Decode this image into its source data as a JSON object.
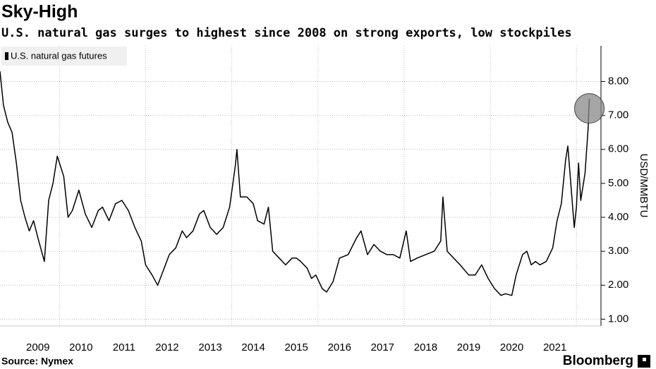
{
  "chart_data": {
    "type": "line",
    "title": "Sky-High",
    "subtitle": "U.S. natural gas surges to highest since 2008 on strong exports, low stockpiles",
    "y_axis_label": "USD/MMBTU",
    "source": "Source: Nymex",
    "brand": "Bloomberg",
    "legend": "top-left",
    "grid": true,
    "xlim": [
      2008.62,
      2022.57
    ],
    "xticks": [
      {
        "value": 2009.5,
        "label": "2009"
      },
      {
        "value": 2010.5,
        "label": "2010"
      },
      {
        "value": 2011.5,
        "label": "2011"
      },
      {
        "value": 2012.5,
        "label": "2012"
      },
      {
        "value": 2013.5,
        "label": "2013"
      },
      {
        "value": 2014.5,
        "label": "2014"
      },
      {
        "value": 2015.5,
        "label": "2015"
      },
      {
        "value": 2016.5,
        "label": "2016"
      },
      {
        "value": 2017.5,
        "label": "2017"
      },
      {
        "value": 2018.5,
        "label": "2018"
      },
      {
        "value": 2019.5,
        "label": "2019"
      },
      {
        "value": 2020.5,
        "label": "2020"
      },
      {
        "value": 2021.5,
        "label": "2021"
      }
    ],
    "xgrid": [
      2010,
      2012,
      2014,
      2016,
      2018,
      2020,
      2022
    ],
    "ylim": [
      0.8,
      9.05
    ],
    "yticks": [
      {
        "value": 1,
        "label": "1.00"
      },
      {
        "value": 2,
        "label": "2.00"
      },
      {
        "value": 3,
        "label": "3.00"
      },
      {
        "value": 4,
        "label": "4.00"
      },
      {
        "value": 5,
        "label": "5.00"
      },
      {
        "value": 6,
        "label": "6.00"
      },
      {
        "value": 7,
        "label": "7.00"
      },
      {
        "value": 8,
        "label": "8.00"
      }
    ],
    "x": [
      2008.62,
      2008.7,
      2008.8,
      2008.9,
      2009.0,
      2009.1,
      2009.2,
      2009.3,
      2009.4,
      2009.5,
      2009.65,
      2009.75,
      2009.85,
      2009.95,
      2010.0,
      2010.1,
      2010.2,
      2010.3,
      2010.45,
      2010.6,
      2010.75,
      2010.9,
      2011.0,
      2011.15,
      2011.3,
      2011.45,
      2011.6,
      2011.75,
      2011.9,
      2012.0,
      2012.15,
      2012.28,
      2012.4,
      2012.55,
      2012.7,
      2012.85,
      2012.95,
      2013.1,
      2013.25,
      2013.35,
      2013.5,
      2013.65,
      2013.8,
      2013.95,
      2014.08,
      2014.12,
      2014.2,
      2014.35,
      2014.5,
      2014.6,
      2014.75,
      2014.85,
      2014.95,
      2015.1,
      2015.25,
      2015.4,
      2015.5,
      2015.6,
      2015.75,
      2015.85,
      2015.95,
      2016.1,
      2016.2,
      2016.35,
      2016.5,
      2016.7,
      2016.9,
      2017.0,
      2017.15,
      2017.3,
      2017.45,
      2017.6,
      2017.75,
      2017.9,
      2018.05,
      2018.15,
      2018.3,
      2018.5,
      2018.7,
      2018.85,
      2018.9,
      2019.0,
      2019.15,
      2019.3,
      2019.5,
      2019.65,
      2019.8,
      2019.95,
      2020.1,
      2020.25,
      2020.35,
      2020.5,
      2020.6,
      2020.75,
      2020.85,
      2020.95,
      2021.05,
      2021.15,
      2021.3,
      2021.45,
      2021.55,
      2021.65,
      2021.75,
      2021.8,
      2021.87,
      2021.95,
      2022.0,
      2022.05,
      2022.1,
      2022.2,
      2022.27,
      2022.3
    ],
    "series": [
      {
        "name": "U.S. natural gas futures",
        "color": "#000000",
        "values": [
          8.3,
          7.3,
          6.8,
          6.5,
          5.6,
          4.5,
          4.0,
          3.6,
          3.9,
          3.4,
          2.7,
          4.5,
          5.0,
          5.8,
          5.6,
          5.2,
          4.0,
          4.2,
          4.8,
          4.1,
          3.7,
          4.2,
          4.3,
          3.9,
          4.4,
          4.5,
          4.2,
          3.7,
          3.3,
          2.6,
          2.3,
          2.0,
          2.4,
          2.9,
          3.1,
          3.6,
          3.4,
          3.6,
          4.1,
          4.2,
          3.7,
          3.5,
          3.7,
          4.3,
          5.5,
          6.0,
          4.6,
          4.6,
          4.4,
          3.9,
          3.8,
          4.3,
          3.0,
          2.8,
          2.6,
          2.8,
          2.8,
          2.7,
          2.5,
          2.2,
          2.3,
          1.9,
          1.8,
          2.1,
          2.8,
          2.9,
          3.4,
          3.6,
          2.9,
          3.2,
          3.0,
          2.9,
          2.9,
          2.8,
          3.6,
          2.7,
          2.8,
          2.9,
          3.0,
          3.3,
          4.6,
          3.0,
          2.8,
          2.6,
          2.3,
          2.3,
          2.6,
          2.2,
          1.9,
          1.7,
          1.75,
          1.7,
          2.3,
          2.9,
          3.0,
          2.6,
          2.7,
          2.6,
          2.7,
          3.1,
          3.9,
          4.4,
          5.7,
          6.1,
          5.0,
          3.7,
          4.3,
          5.6,
          4.5,
          5.3,
          6.6,
          7.5
        ]
      }
    ]
  }
}
